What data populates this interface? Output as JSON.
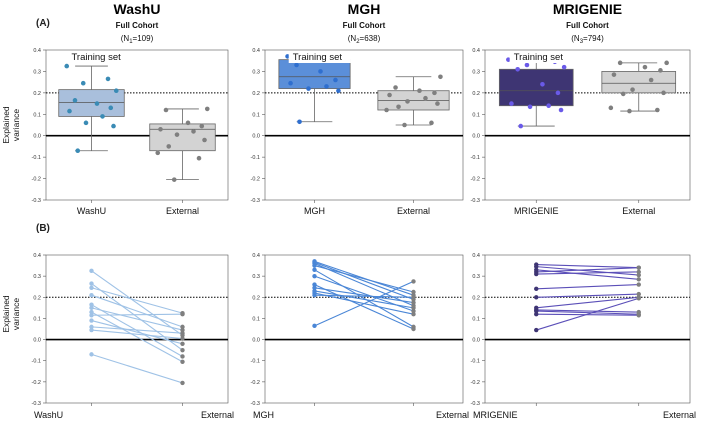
{
  "panel_labels": [
    "(A)",
    "(B)"
  ],
  "y_axis_label_line1": "Explained",
  "y_axis_label_line2": "variance",
  "training_set_label": "Training set",
  "colors": {
    "external_fill": "#d3d3d3",
    "external_point": "#7f7f7f",
    "reference_line": "#000000"
  },
  "chart_data": [
    {
      "type": "box",
      "panel": "A",
      "title": "WashU",
      "subtitle": "Full Cohort",
      "n_prefix": "(N",
      "n_sub": "1",
      "n_suffix": "=109)",
      "categories": [
        "WashU",
        "External"
      ],
      "ylim": [
        -0.3,
        0.4
      ],
      "yticks": [
        "-0.3",
        "-0.2",
        "-0.1",
        "0.0",
        "0.1",
        "0.2",
        "0.3",
        "0.4"
      ],
      "baseline": 0.0,
      "reference": 0.2,
      "train_color": "#a9bfdc",
      "train_point": "#3a8bb5",
      "boxes": [
        {
          "q1": 0.09,
          "median": 0.155,
          "q3": 0.215,
          "whisker_low": -0.07,
          "whisker_high": 0.325
        },
        {
          "q1": -0.07,
          "median": 0.03,
          "q3": 0.055,
          "whisker_low": -0.205,
          "whisker_high": 0.125
        }
      ],
      "train_points": [
        0.325,
        0.265,
        0.245,
        0.21,
        0.165,
        0.15,
        0.13,
        0.115,
        0.09,
        0.06,
        0.045,
        -0.07
      ],
      "external_points": [
        0.125,
        0.12,
        0.06,
        0.045,
        0.03,
        0.02,
        0.005,
        -0.02,
        -0.05,
        -0.08,
        -0.105,
        -0.205
      ]
    },
    {
      "type": "box",
      "panel": "A",
      "title": "MGH",
      "subtitle": "Full Cohort",
      "n_prefix": "(N",
      "n_sub": "2",
      "n_suffix": "=638)",
      "categories": [
        "MGH",
        "External"
      ],
      "ylim": [
        -0.3,
        0.4
      ],
      "yticks": [
        "-0.3",
        "-0.2",
        "-0.1",
        "0.0",
        "0.1",
        "0.2",
        "0.3",
        "0.4"
      ],
      "baseline": 0.0,
      "reference": 0.2,
      "train_color": "#5b8fd9",
      "train_point": "#2f6fcf",
      "boxes": [
        {
          "q1": 0.22,
          "median": 0.275,
          "q3": 0.355,
          "whisker_low": 0.065,
          "whisker_high": 0.37
        },
        {
          "q1": 0.12,
          "median": 0.165,
          "q3": 0.21,
          "whisker_low": 0.05,
          "whisker_high": 0.275
        }
      ],
      "train_points": [
        0.37,
        0.365,
        0.36,
        0.35,
        0.33,
        0.3,
        0.26,
        0.245,
        0.23,
        0.22,
        0.21,
        0.065
      ],
      "external_points": [
        0.275,
        0.225,
        0.21,
        0.2,
        0.19,
        0.175,
        0.16,
        0.15,
        0.135,
        0.12,
        0.06,
        0.05
      ]
    },
    {
      "type": "box",
      "panel": "A",
      "title": "MRIGENIE",
      "subtitle": "Full Cohort",
      "n_prefix": "(N",
      "n_sub": "3",
      "n_suffix": "=794)",
      "categories": [
        "MRIGENIE",
        "External"
      ],
      "ylim": [
        -0.3,
        0.4
      ],
      "yticks": [
        "-0.3",
        "-0.2",
        "-0.1",
        "0.0",
        "0.1",
        "0.2",
        "0.3",
        "0.4"
      ],
      "baseline": 0.0,
      "reference": 0.2,
      "train_color": "#3e3573",
      "train_point": "#6a5ae8",
      "boxes": [
        {
          "q1": 0.14,
          "median": 0.21,
          "q3": 0.31,
          "whisker_low": 0.045,
          "whisker_high": 0.355
        },
        {
          "q1": 0.2,
          "median": 0.245,
          "q3": 0.3,
          "whisker_low": 0.115,
          "whisker_high": 0.34
        }
      ],
      "train_points": [
        0.355,
        0.345,
        0.33,
        0.32,
        0.31,
        0.24,
        0.2,
        0.15,
        0.14,
        0.135,
        0.12,
        0.045
      ],
      "external_points": [
        0.34,
        0.34,
        0.32,
        0.305,
        0.285,
        0.26,
        0.215,
        0.2,
        0.195,
        0.13,
        0.12,
        0.115
      ]
    },
    {
      "type": "line",
      "panel": "B",
      "categories": [
        "WashU",
        "External"
      ],
      "ylim": [
        -0.3,
        0.4
      ],
      "yticks": [
        "-0.3",
        "-0.2",
        "-0.1",
        "0.0",
        "0.1",
        "0.2",
        "0.3",
        "0.4"
      ],
      "baseline": 0.0,
      "reference": 0.2,
      "line_color": "#9fc2e6",
      "left_point": "#9fc2e6",
      "pairs": [
        [
          0.325,
          0.02
        ],
        [
          0.265,
          -0.05
        ],
        [
          0.245,
          0.125
        ],
        [
          0.21,
          0.06
        ],
        [
          0.165,
          -0.08
        ],
        [
          0.15,
          0.045
        ],
        [
          0.13,
          -0.105
        ],
        [
          0.115,
          0.12
        ],
        [
          0.09,
          -0.02
        ],
        [
          0.06,
          0.03
        ],
        [
          0.045,
          0.005
        ],
        [
          -0.07,
          -0.205
        ]
      ]
    },
    {
      "type": "line",
      "panel": "B",
      "categories": [
        "MGH",
        "External"
      ],
      "ylim": [
        -0.3,
        0.4
      ],
      "yticks": [
        "-0.3",
        "-0.2",
        "-0.1",
        "0.0",
        "0.1",
        "0.2",
        "0.3",
        "0.4"
      ],
      "baseline": 0.0,
      "reference": 0.2,
      "line_color": "#4a86d6",
      "left_point": "#4a86d6",
      "pairs": [
        [
          0.37,
          0.21
        ],
        [
          0.365,
          0.19
        ],
        [
          0.36,
          0.16
        ],
        [
          0.35,
          0.225
        ],
        [
          0.33,
          0.06
        ],
        [
          0.3,
          0.135
        ],
        [
          0.26,
          0.05
        ],
        [
          0.245,
          0.175
        ],
        [
          0.23,
          0.15
        ],
        [
          0.22,
          0.12
        ],
        [
          0.21,
          0.2
        ],
        [
          0.065,
          0.275
        ]
      ]
    },
    {
      "type": "line",
      "panel": "B",
      "categories": [
        "MRIGENIE",
        "External"
      ],
      "ylim": [
        -0.3,
        0.4
      ],
      "yticks": [
        "-0.3",
        "-0.2",
        "-0.1",
        "0.0",
        "0.1",
        "0.2",
        "0.3",
        "0.4"
      ],
      "baseline": 0.0,
      "reference": 0.2,
      "line_color": "#5b4fb8",
      "left_point": "#3e3573",
      "pairs": [
        [
          0.355,
          0.34
        ],
        [
          0.345,
          0.305
        ],
        [
          0.33,
          0.285
        ],
        [
          0.32,
          0.34
        ],
        [
          0.31,
          0.32
        ],
        [
          0.24,
          0.26
        ],
        [
          0.2,
          0.215
        ],
        [
          0.15,
          0.2
        ],
        [
          0.14,
          0.13
        ],
        [
          0.135,
          0.12
        ],
        [
          0.12,
          0.115
        ],
        [
          0.045,
          0.195
        ]
      ]
    }
  ]
}
